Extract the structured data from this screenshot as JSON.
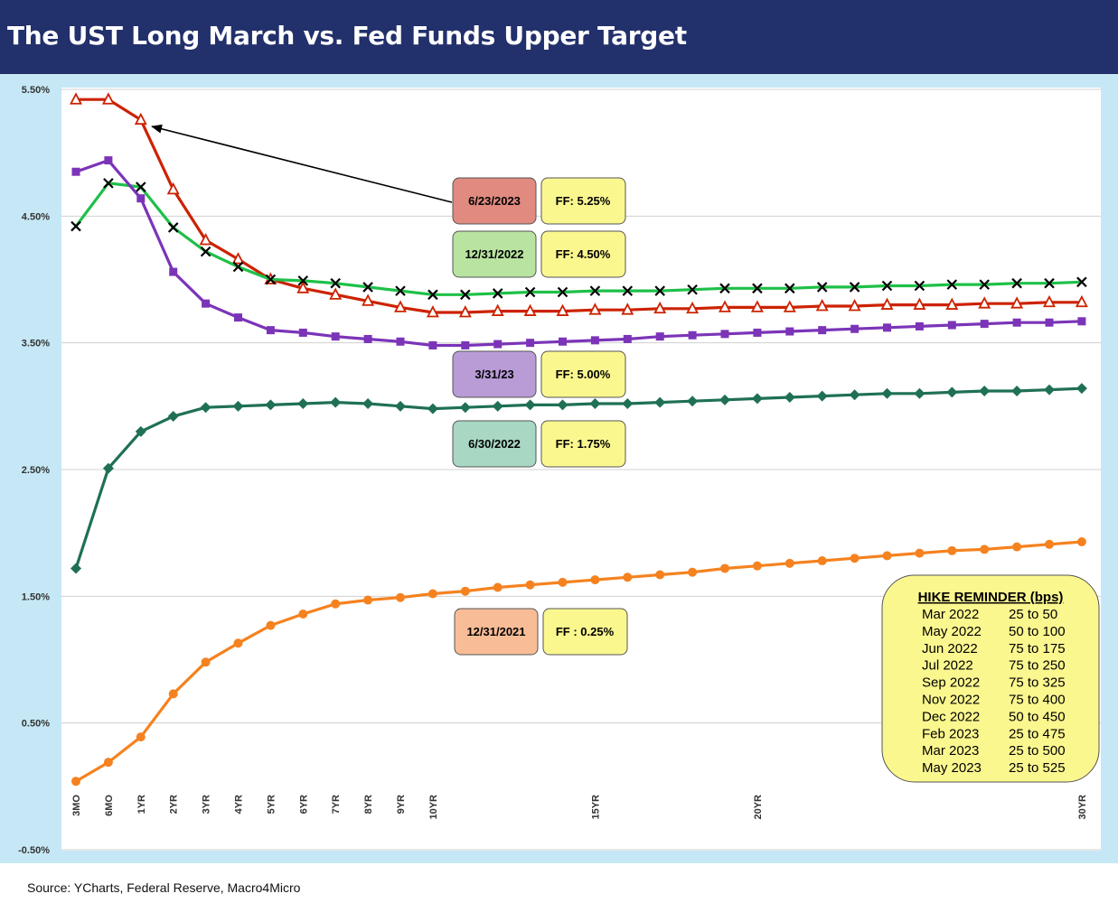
{
  "title": "The UST Long March vs. Fed Funds Upper Target",
  "source": "Source: YCharts, Federal Reserve, Macro4Micro",
  "chart_data": {
    "type": "line",
    "title": "The UST Long March vs. Fed Funds Upper Target",
    "y_ticks": [
      "5.50%",
      "4.50%",
      "3.50%",
      "2.50%",
      "1.50%",
      "0.50%",
      "-0.50%"
    ],
    "ylim": [
      -0.5,
      5.5
    ],
    "x_ticks": [
      {
        "label": "3MO",
        "pos": 0
      },
      {
        "label": "6MO",
        "pos": 1
      },
      {
        "label": "1YR",
        "pos": 2
      },
      {
        "label": "2YR",
        "pos": 3
      },
      {
        "label": "3YR",
        "pos": 4
      },
      {
        "label": "4YR",
        "pos": 5
      },
      {
        "label": "5YR",
        "pos": 6
      },
      {
        "label": "6YR",
        "pos": 7
      },
      {
        "label": "7YR",
        "pos": 8
      },
      {
        "label": "8YR",
        "pos": 9
      },
      {
        "label": "9YR",
        "pos": 10
      },
      {
        "label": "10YR",
        "pos": 11
      },
      {
        "label": "15YR",
        "pos": 16
      },
      {
        "label": "20YR",
        "pos": 21
      },
      {
        "label": "30YR",
        "pos": 31
      }
    ],
    "grid": true,
    "series": [
      {
        "name": "6/23/2023",
        "ff_label": "FF: 5.25%",
        "color": "#cc2200",
        "marker": "triangle-open",
        "box_color": "#e08a80",
        "values": [
          5.42,
          5.42,
          5.26,
          4.71,
          4.31,
          4.16,
          4.0,
          3.93,
          3.88,
          3.83,
          3.78,
          3.74,
          3.74,
          3.75,
          3.75,
          3.75,
          3.76,
          3.76,
          3.77,
          3.77,
          3.78,
          3.78,
          3.78,
          3.79,
          3.79,
          3.8,
          3.8,
          3.8,
          3.81,
          3.81,
          3.82,
          3.82
        ]
      },
      {
        "name": "12/31/2022",
        "ff_label": "FF: 4.50%",
        "color": "#1ec048",
        "marker": "x",
        "box_color": "#b8e3a0",
        "values": [
          4.42,
          4.76,
          4.73,
          4.41,
          4.22,
          4.1,
          4.0,
          3.99,
          3.97,
          3.94,
          3.91,
          3.88,
          3.88,
          3.89,
          3.9,
          3.9,
          3.91,
          3.91,
          3.91,
          3.92,
          3.93,
          3.93,
          3.93,
          3.94,
          3.94,
          3.95,
          3.95,
          3.96,
          3.96,
          3.97,
          3.97,
          3.98
        ]
      },
      {
        "name": "3/31/23",
        "ff_label": "FF: 5.00%",
        "color": "#7b34b8",
        "marker": "square",
        "box_color": "#b99bd6",
        "values": [
          4.85,
          4.94,
          4.64,
          4.06,
          3.81,
          3.7,
          3.6,
          3.58,
          3.55,
          3.53,
          3.51,
          3.48,
          3.48,
          3.49,
          3.5,
          3.51,
          3.52,
          3.53,
          3.55,
          3.56,
          3.57,
          3.58,
          3.59,
          3.6,
          3.61,
          3.62,
          3.63,
          3.64,
          3.65,
          3.66,
          3.66,
          3.67
        ]
      },
      {
        "name": "6/30/2022",
        "ff_label": "FF: 1.75%",
        "color": "#1f7055",
        "marker": "diamond",
        "box_color": "#a8d7c3",
        "values": [
          1.72,
          2.51,
          2.8,
          2.92,
          2.99,
          3.0,
          3.01,
          3.02,
          3.03,
          3.02,
          3.0,
          2.98,
          2.99,
          3.0,
          3.01,
          3.01,
          3.02,
          3.02,
          3.03,
          3.04,
          3.05,
          3.06,
          3.07,
          3.08,
          3.09,
          3.1,
          3.1,
          3.11,
          3.12,
          3.12,
          3.13,
          3.14
        ]
      },
      {
        "name": "12/31/2021",
        "ff_label": "FF : 0.25%",
        "color": "#f5821f",
        "marker": "circle",
        "box_color": "#f8bd96",
        "values": [
          0.04,
          0.19,
          0.39,
          0.73,
          0.98,
          1.13,
          1.27,
          1.36,
          1.44,
          1.47,
          1.49,
          1.52,
          1.54,
          1.57,
          1.59,
          1.61,
          1.63,
          1.65,
          1.67,
          1.69,
          1.72,
          1.74,
          1.76,
          1.78,
          1.8,
          1.82,
          1.84,
          1.86,
          1.87,
          1.89,
          1.91,
          1.93
        ]
      }
    ],
    "hike_reminder": {
      "title": "HIKE REMINDER (bps)",
      "rows": [
        {
          "date": "Mar 2022",
          "hike": "25 to 50"
        },
        {
          "date": "May 2022",
          "hike": "50 to 100"
        },
        {
          "date": "Jun 2022",
          "hike": "75 to 175"
        },
        {
          "date": "Jul 2022",
          "hike": "75 to 250"
        },
        {
          "date": "Sep 2022",
          "hike": "75 to 325"
        },
        {
          "date": "Nov 2022",
          "hike": "75 to 400"
        },
        {
          "date": "Dec 2022",
          "hike": "50 to 450"
        },
        {
          "date": "Feb 2023",
          "hike": "25 to 475"
        },
        {
          "date": "Mar 2023",
          "hike": "25 to 500"
        },
        {
          "date": "May 2023",
          "hike": "25 to 525"
        }
      ]
    }
  }
}
